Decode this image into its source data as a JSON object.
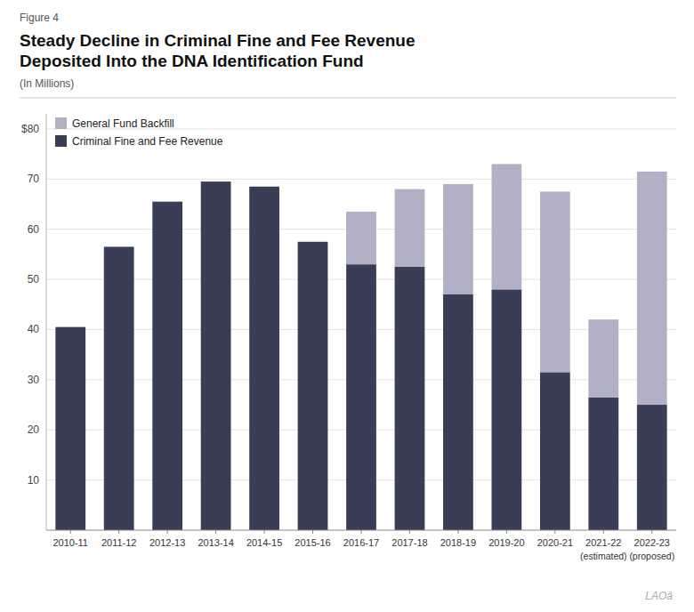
{
  "chart_data": {
    "type": "bar",
    "stacked": true,
    "title": [
      "Steady Decline in Criminal Fine and Fee Revenue",
      "Deposited Into the DNA Identification Fund"
    ],
    "subtitle": "(In Millions)",
    "annotations": [
      {
        "text": "Figure 4"
      },
      {
        "text": "(estimated)",
        "x": "2021-22"
      },
      {
        "text": "(proposed)",
        "x": "2022-23"
      },
      {
        "text": "LAOâ"
      }
    ],
    "categories": [
      "2010-11",
      "2011-12",
      "2012-13",
      "2013-14",
      "2014-15",
      "2015-16",
      "2016-17",
      "2017-18",
      "2018-19",
      "2019-20",
      "2020-21",
      "2021-22",
      "2022-23"
    ],
    "series": [
      {
        "name": "Criminal Fine and Fee Revenue",
        "color": "#3a3d56",
        "values": [
          40.5,
          56.5,
          65.5,
          69.5,
          68.5,
          57.5,
          53.0,
          52.5,
          47.0,
          48.0,
          31.5,
          26.5,
          25.0
        ]
      },
      {
        "name": "General Fund Backfill",
        "color": "#b2b0c4",
        "values": [
          0,
          0,
          0,
          0,
          0,
          0,
          10.5,
          15.5,
          22.0,
          25.0,
          36.0,
          15.5,
          46.5
        ]
      }
    ],
    "ylim": [
      0,
      83
    ],
    "yticks": [
      10,
      20,
      30,
      40,
      50,
      60,
      70,
      {
        "value": 80,
        "label": "$80"
      }
    ],
    "grid": true,
    "legend": "top-left"
  }
}
